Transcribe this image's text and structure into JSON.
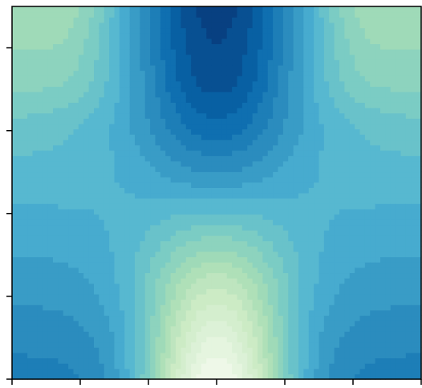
{
  "chart_data": {
    "type": "heatmap",
    "title": "",
    "xlabel": "",
    "ylabel": "",
    "xlim": [
      0,
      6
    ],
    "ylim": [
      0,
      4.5
    ],
    "x_ticks": [
      0,
      1,
      2,
      3,
      4,
      5,
      6
    ],
    "y_ticks": [
      0,
      1,
      2,
      3,
      4
    ],
    "tick_labels_visible": false,
    "colormap": "GnBu",
    "levels": 20,
    "grid": false,
    "legend": "none",
    "colors": [
      "#f7fcf0",
      "#e0f3db",
      "#ccebc5",
      "#a8ddb5",
      "#7bccc4",
      "#4eb3d3",
      "#2b8cbe",
      "#0868ac",
      "#084081"
    ],
    "center_column_x": 3,
    "z_center_column": [
      0.98,
      0.86,
      0.7,
      0.5,
      0.3,
      0.15,
      0.05,
      0.0
    ],
    "z_edge_column": [
      0.2,
      0.25,
      0.3,
      0.35,
      0.4,
      0.45,
      0.55,
      0.62
    ],
    "z_y_samples": [
      0,
      0.6,
      1.2,
      1.8,
      2.4,
      3.0,
      3.6,
      4.5
    ]
  }
}
